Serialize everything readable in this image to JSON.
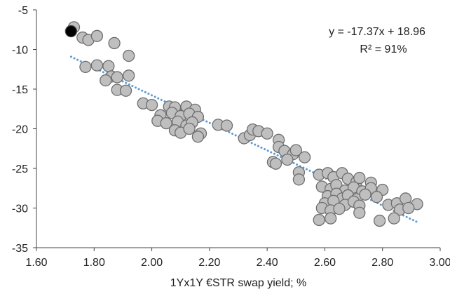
{
  "chart_data": {
    "type": "scatter",
    "xlabel": "1Yx1Y €STR swap yield; %",
    "ylabel": "",
    "xlim": [
      1.6,
      3.0
    ],
    "ylim": [
      -35,
      -5
    ],
    "x_ticks": [
      "1.60",
      "1.80",
      "2.00",
      "2.20",
      "2.40",
      "2.60",
      "2.80",
      "3.00"
    ],
    "y_ticks": [
      "-5",
      "-10",
      "-15",
      "-20",
      "-25",
      "-30",
      "-35"
    ],
    "grid": false,
    "colors": {
      "points": "#bfbfbf",
      "point_edge": "#6e6e6e",
      "highlight": "#000000",
      "trendline": "#5b9bd5"
    },
    "annotations": [
      "y = -17.37x + 18.96",
      "R² = 91%"
    ],
    "trendline": {
      "slope": -17.37,
      "intercept": 18.96,
      "x_range": [
        1.72,
        2.92
      ]
    },
    "highlight_point": {
      "x": 1.72,
      "y": -7.7
    },
    "points": [
      {
        "x": 1.73,
        "y": -7.2
      },
      {
        "x": 1.76,
        "y": -8.5
      },
      {
        "x": 1.78,
        "y": -8.8
      },
      {
        "x": 1.81,
        "y": -8.3
      },
      {
        "x": 1.87,
        "y": -9.2
      },
      {
        "x": 1.92,
        "y": -10.8
      },
      {
        "x": 1.77,
        "y": -12.2
      },
      {
        "x": 1.81,
        "y": -12.0
      },
      {
        "x": 1.85,
        "y": -12.1
      },
      {
        "x": 1.86,
        "y": -13.4
      },
      {
        "x": 1.84,
        "y": -13.9
      },
      {
        "x": 1.88,
        "y": -13.5
      },
      {
        "x": 1.92,
        "y": -13.3
      },
      {
        "x": 1.88,
        "y": -15.1
      },
      {
        "x": 1.91,
        "y": -15.2
      },
      {
        "x": 1.97,
        "y": -16.8
      },
      {
        "x": 2.0,
        "y": -17.0
      },
      {
        "x": 2.06,
        "y": -17.2
      },
      {
        "x": 2.08,
        "y": -17.3
      },
      {
        "x": 2.12,
        "y": -17.2
      },
      {
        "x": 2.15,
        "y": -17.6
      },
      {
        "x": 2.03,
        "y": -18.3
      },
      {
        "x": 2.07,
        "y": -18.0
      },
      {
        "x": 2.1,
        "y": -18.4
      },
      {
        "x": 2.13,
        "y": -18.1
      },
      {
        "x": 2.16,
        "y": -18.5
      },
      {
        "x": 2.02,
        "y": -19.0
      },
      {
        "x": 2.05,
        "y": -19.3
      },
      {
        "x": 2.09,
        "y": -19.1
      },
      {
        "x": 2.12,
        "y": -19.6
      },
      {
        "x": 2.14,
        "y": -19.2
      },
      {
        "x": 2.08,
        "y": -20.2
      },
      {
        "x": 2.1,
        "y": -20.5
      },
      {
        "x": 2.13,
        "y": -20.0
      },
      {
        "x": 2.17,
        "y": -20.6
      },
      {
        "x": 2.16,
        "y": -21.0
      },
      {
        "x": 2.23,
        "y": -19.5
      },
      {
        "x": 2.26,
        "y": -19.6
      },
      {
        "x": 2.32,
        "y": -21.2
      },
      {
        "x": 2.34,
        "y": -20.8
      },
      {
        "x": 2.35,
        "y": -20.1
      },
      {
        "x": 2.37,
        "y": -20.3
      },
      {
        "x": 2.4,
        "y": -20.6
      },
      {
        "x": 2.44,
        "y": -21.4
      },
      {
        "x": 2.44,
        "y": -22.3
      },
      {
        "x": 2.46,
        "y": -22.8
      },
      {
        "x": 2.49,
        "y": -23.2
      },
      {
        "x": 2.5,
        "y": -22.7
      },
      {
        "x": 2.53,
        "y": -23.6
      },
      {
        "x": 2.42,
        "y": -24.2
      },
      {
        "x": 2.43,
        "y": -24.4
      },
      {
        "x": 2.47,
        "y": -23.9
      },
      {
        "x": 2.51,
        "y": -25.5
      },
      {
        "x": 2.51,
        "y": -26.4
      },
      {
        "x": 2.58,
        "y": -25.8
      },
      {
        "x": 2.61,
        "y": -25.6
      },
      {
        "x": 2.63,
        "y": -26.1
      },
      {
        "x": 2.66,
        "y": -25.6
      },
      {
        "x": 2.68,
        "y": -26.3
      },
      {
        "x": 2.71,
        "y": -26.7
      },
      {
        "x": 2.72,
        "y": -26.2
      },
      {
        "x": 2.76,
        "y": -26.8
      },
      {
        "x": 2.59,
        "y": -27.3
      },
      {
        "x": 2.62,
        "y": -27.6
      },
      {
        "x": 2.64,
        "y": -27.1
      },
      {
        "x": 2.67,
        "y": -27.8
      },
      {
        "x": 2.7,
        "y": -27.4
      },
      {
        "x": 2.73,
        "y": -27.9
      },
      {
        "x": 2.76,
        "y": -27.5
      },
      {
        "x": 2.8,
        "y": -27.7
      },
      {
        "x": 2.61,
        "y": -28.5
      },
      {
        "x": 2.64,
        "y": -28.2
      },
      {
        "x": 2.66,
        "y": -28.8
      },
      {
        "x": 2.68,
        "y": -28.4
      },
      {
        "x": 2.71,
        "y": -28.9
      },
      {
        "x": 2.74,
        "y": -28.3
      },
      {
        "x": 2.78,
        "y": -28.6
      },
      {
        "x": 2.6,
        "y": -29.4
      },
      {
        "x": 2.63,
        "y": -29.1
      },
      {
        "x": 2.67,
        "y": -29.6
      },
      {
        "x": 2.7,
        "y": -29.2
      },
      {
        "x": 2.72,
        "y": -29.7
      },
      {
        "x": 2.82,
        "y": -29.6
      },
      {
        "x": 2.85,
        "y": -29.4
      },
      {
        "x": 2.88,
        "y": -28.8
      },
      {
        "x": 2.92,
        "y": -29.5
      },
      {
        "x": 2.59,
        "y": -30.0
      },
      {
        "x": 2.62,
        "y": -30.3
      },
      {
        "x": 2.65,
        "y": -30.1
      },
      {
        "x": 2.72,
        "y": -30.6
      },
      {
        "x": 2.86,
        "y": -30.2
      },
      {
        "x": 2.89,
        "y": -30.0
      },
      {
        "x": 2.58,
        "y": -31.5
      },
      {
        "x": 2.62,
        "y": -31.3
      },
      {
        "x": 2.79,
        "y": -31.6
      },
      {
        "x": 2.84,
        "y": -31.3
      }
    ]
  }
}
